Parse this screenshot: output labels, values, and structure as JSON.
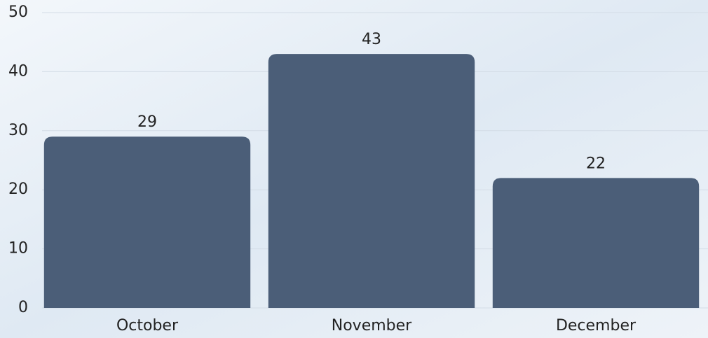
{
  "chart_data": {
    "type": "bar",
    "categories": [
      "October",
      "November",
      "December"
    ],
    "values": [
      29,
      43,
      22
    ],
    "color": "#4b5e78",
    "ylim": [
      0,
      50
    ],
    "yticks": [
      0,
      10,
      20,
      30,
      40,
      50
    ],
    "grid": true
  }
}
